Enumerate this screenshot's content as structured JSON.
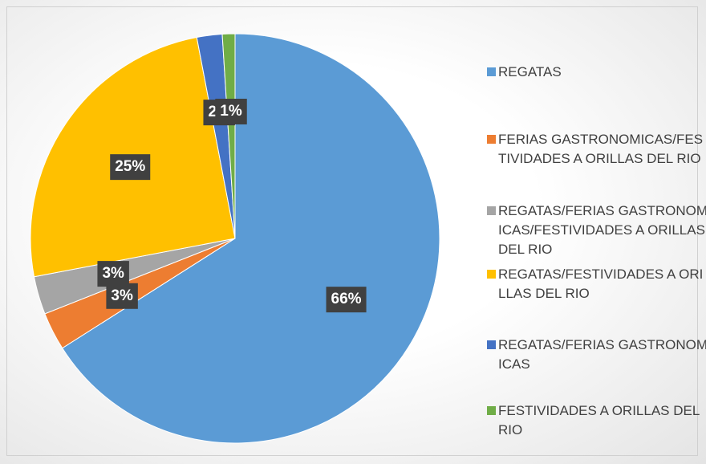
{
  "chart_data": {
    "type": "pie",
    "categories": [
      "REGATAS",
      "FERIAS GASTRONOMICAS/FESTIVIDADES A ORILLAS DEL RIO",
      "REGATAS/FERIAS GASTRONOMICAS/FESTIVIDADES A ORILLAS DEL RIO",
      "REGATAS/FESTIVIDADES A ORILLAS DEL RIO",
      "REGATAS/FERIAS GASTRONOMICAS",
      "FESTIVIDADES A ORILLAS DEL RIO"
    ],
    "values": [
      66,
      3,
      3,
      25,
      2,
      1
    ],
    "value_labels": [
      "66%",
      "3%",
      "3%",
      "25%",
      "2%",
      "1%"
    ],
    "colors": [
      "#5b9bd5",
      "#ed7d31",
      "#a5a5a5",
      "#ffc000",
      "#4472c4",
      "#70ad47"
    ],
    "legend": "right"
  }
}
